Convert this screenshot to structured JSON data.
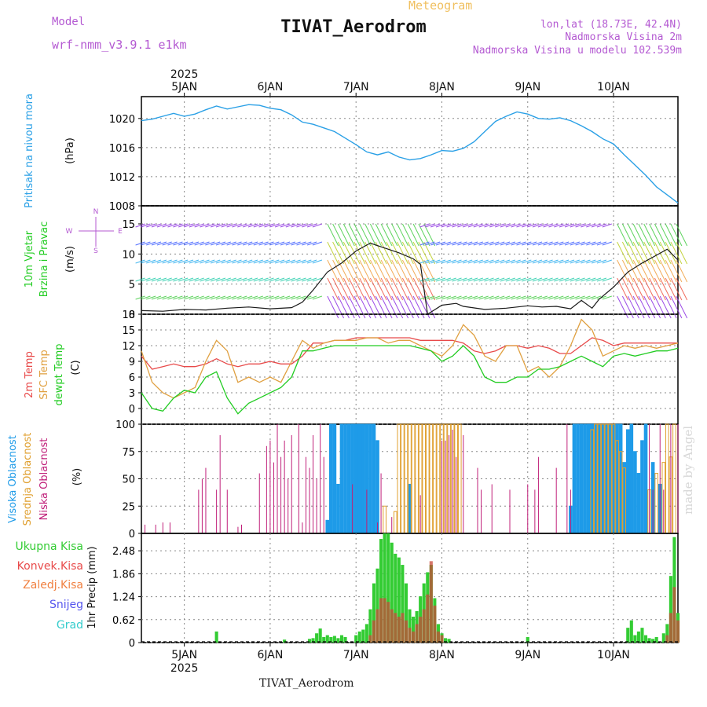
{
  "header": {
    "model_label": "Model",
    "model_value": "wrf-nmm_v3.9.1 e1km",
    "title": "TIVAT_Aerodrom",
    "subtitle": "Meteogram",
    "coords": "lon,lat (18.73E, 42.4N)",
    "elevation": "Nadmorska Visina 2m",
    "model_elevation": "Nadmorska Visina u modelu 102.539m"
  },
  "footer": {
    "station": "TIVAT_Aerodrom"
  },
  "credit": "made by Angel",
  "colors": {
    "pressure": "#2aa0e6",
    "rh": "#1a1a1a",
    "temp2m": "#e84a4a",
    "sfc": "#e0a040",
    "dewpt": "#22cc22",
    "cloud_high": "#1e9be8",
    "cloud_mid": "#e0a030",
    "cloud_low": "#c0207a",
    "precip_total": "#33cc33",
    "precip_conv": "#c84a3a",
    "label_magenta": "#b45ad2",
    "grid": "#888888"
  },
  "chart_data": [
    {
      "type": "line",
      "panel": "pressure",
      "ylabel_lines": [
        "Pritisak na nivou mora",
        "(hPa)"
      ],
      "ylim": [
        1008,
        1023
      ],
      "yticks": [
        1008,
        1012,
        1016,
        1020
      ],
      "xticks_top": [
        "5JAN",
        "6JAN",
        "7JAN",
        "8JAN",
        "9JAN",
        "10JAN"
      ],
      "year_top": "2025",
      "x_unit": "hours from 2025-01-04 12:00 UTC",
      "x": [
        0,
        3,
        6,
        9,
        12,
        15,
        18,
        21,
        24,
        27,
        30,
        33,
        36,
        39,
        42,
        45,
        48,
        51,
        54,
        57,
        60,
        63,
        66,
        69,
        72,
        75,
        78,
        81,
        84,
        87,
        90,
        93,
        96,
        99,
        102,
        105,
        108,
        111,
        114,
        117,
        120,
        123,
        126,
        129,
        132,
        135,
        138,
        141,
        144,
        147,
        150
      ],
      "y": [
        1019.7,
        1019.9,
        1020.3,
        1020.7,
        1020.3,
        1020.6,
        1021.2,
        1021.7,
        1021.3,
        1021.6,
        1021.9,
        1021.8,
        1021.4,
        1021.2,
        1020.5,
        1019.5,
        1019.2,
        1018.7,
        1018.2,
        1017.3,
        1016.4,
        1015.4,
        1015.0,
        1015.4,
        1014.7,
        1014.3,
        1014.5,
        1015.0,
        1015.6,
        1015.5,
        1015.9,
        1016.8,
        1018.2,
        1019.6,
        1020.3,
        1020.9,
        1020.6,
        1020.0,
        1019.9,
        1020.1,
        1019.7,
        1019.0,
        1018.2,
        1017.2,
        1016.5,
        1015.0,
        1013.6,
        1012.2,
        1010.6,
        1009.5,
        1008.4
      ]
    },
    {
      "type": "line",
      "panel": "wind",
      "ylabel_lines": [
        "10m Vjetar",
        "Brzina i Pravac",
        "(m/s)"
      ],
      "compass": [
        "N",
        "W",
        "E",
        "S"
      ],
      "ylim": [
        0,
        18
      ],
      "yticks": [
        0,
        5,
        10,
        15
      ],
      "series": [
        {
          "name": "wind speed",
          "x": [
            0,
            6,
            12,
            18,
            24,
            30,
            36,
            42,
            45,
            48,
            52,
            56,
            60,
            64,
            68,
            72,
            76,
            78,
            80,
            84,
            88,
            90,
            96,
            102,
            108,
            112,
            116,
            120,
            123,
            126,
            128,
            132,
            136,
            140,
            144,
            147,
            150
          ],
          "y": [
            0.6,
            0.5,
            0.8,
            0.7,
            1.0,
            1.2,
            0.9,
            1.1,
            2.0,
            4.0,
            7.0,
            8.5,
            10.5,
            11.8,
            11.0,
            10.2,
            9.2,
            8.3,
            0.0,
            1.5,
            1.8,
            1.3,
            0.8,
            1.0,
            1.4,
            1.2,
            1.3,
            0.9,
            2.3,
            1.0,
            2.5,
            4.5,
            7.0,
            8.5,
            9.8,
            10.8,
            9.0
          ]
        }
      ]
    },
    {
      "type": "line",
      "panel": "temperature",
      "ylabel_lines": [
        "2m Temp",
        "SFC Temp",
        "dewpt Temp",
        "(C)"
      ],
      "ylim": [
        -3,
        18
      ],
      "yticks": [
        0,
        3,
        6,
        9,
        12,
        15,
        18
      ],
      "series": [
        {
          "name": "2m Temp",
          "x": [
            0,
            3,
            6,
            9,
            12,
            15,
            18,
            21,
            24,
            27,
            30,
            33,
            36,
            39,
            42,
            45,
            48,
            51,
            54,
            57,
            60,
            63,
            66,
            69,
            72,
            75,
            78,
            81,
            84,
            87,
            90,
            93,
            96,
            99,
            102,
            105,
            108,
            111,
            114,
            117,
            120,
            123,
            126,
            129,
            132,
            135,
            138,
            141,
            144,
            147,
            150
          ],
          "y": [
            10,
            7.5,
            8,
            8.5,
            8,
            8,
            8.5,
            9.5,
            8.5,
            8,
            8.5,
            8.5,
            9,
            8.5,
            8.5,
            10,
            12.5,
            12.5,
            13,
            13,
            13.5,
            13.5,
            13.5,
            13.5,
            13.5,
            13.5,
            13,
            13,
            13,
            13,
            12.5,
            11,
            10.5,
            11,
            12,
            12,
            11.5,
            12,
            11.5,
            10.5,
            10.5,
            12,
            13.5,
            13,
            12,
            12.5,
            12.5,
            12.5,
            12.5,
            12.5,
            12.5
          ]
        },
        {
          "name": "SFC Temp",
          "x": [
            0,
            3,
            6,
            9,
            12,
            15,
            18,
            21,
            24,
            27,
            30,
            33,
            36,
            39,
            42,
            45,
            48,
            51,
            54,
            57,
            60,
            63,
            66,
            69,
            72,
            75,
            78,
            81,
            84,
            87,
            90,
            93,
            96,
            99,
            102,
            105,
            108,
            111,
            114,
            117,
            120,
            123,
            126,
            129,
            132,
            135,
            138,
            141,
            144,
            147,
            150
          ],
          "y": [
            11,
            5,
            3,
            2,
            3,
            4,
            9,
            13,
            11,
            5,
            6,
            5,
            6,
            5,
            9,
            13,
            11.5,
            12.5,
            13,
            13,
            13,
            13.5,
            13.5,
            12.5,
            13,
            13,
            12,
            11,
            10,
            12,
            16,
            14,
            10,
            9,
            12,
            12,
            7,
            8,
            6,
            8,
            12,
            17,
            15,
            10,
            11,
            12,
            11.5,
            12,
            11.5,
            12,
            12.5
          ]
        },
        {
          "name": "dewpt Temp",
          "x": [
            0,
            3,
            6,
            9,
            12,
            15,
            18,
            21,
            24,
            27,
            30,
            33,
            36,
            39,
            42,
            45,
            48,
            51,
            54,
            57,
            60,
            63,
            66,
            69,
            72,
            75,
            78,
            81,
            84,
            87,
            90,
            93,
            96,
            99,
            102,
            105,
            108,
            111,
            114,
            117,
            120,
            123,
            126,
            129,
            132,
            135,
            138,
            141,
            144,
            147,
            150
          ],
          "y": [
            3,
            0,
            -0.5,
            2,
            3.5,
            3,
            6,
            7,
            2,
            -1,
            1,
            2,
            3,
            4,
            6,
            11,
            11,
            11.5,
            12,
            12,
            12,
            12,
            12,
            12,
            12,
            12,
            11.5,
            11,
            9,
            10,
            12,
            10,
            6,
            5,
            5,
            6,
            6,
            7.5,
            7.5,
            8,
            9,
            10,
            9,
            8,
            10,
            10.5,
            10,
            10.5,
            11,
            11,
            11.5
          ]
        }
      ]
    },
    {
      "type": "bar",
      "panel": "cloud",
      "ylabel_lines": [
        "Visoka Oblacnost",
        "Srednja Oblacnost",
        "Niska Oblacnost",
        "(%)"
      ],
      "ylim": [
        0,
        100
      ],
      "yticks": [
        0,
        25,
        50,
        75,
        100
      ],
      "series": [
        {
          "name": "Visoka Oblacnost",
          "x": [
            52,
            53,
            54,
            55,
            56,
            57,
            58,
            59,
            60,
            61,
            62,
            63,
            64,
            65,
            66,
            75,
            120,
            121,
            122,
            123,
            124,
            125,
            126,
            127,
            128,
            129,
            130,
            131,
            132,
            133,
            134,
            135,
            136,
            137,
            138,
            139,
            140,
            141,
            143,
            145
          ],
          "y": [
            12,
            100,
            100,
            45,
            100,
            100,
            100,
            100,
            100,
            100,
            100,
            100,
            100,
            100,
            85,
            45,
            25,
            100,
            100,
            100,
            100,
            100,
            100,
            100,
            100,
            100,
            100,
            100,
            100,
            100,
            100,
            65,
            95,
            100,
            75,
            55,
            85,
            100,
            65,
            45
          ]
        },
        {
          "name": "Srednja Oblacnost",
          "x": [
            68,
            71,
            72,
            73,
            74,
            75,
            76,
            77,
            78,
            79,
            80,
            81,
            82,
            83,
            84,
            85,
            86,
            87,
            88,
            89,
            126,
            127,
            128,
            129,
            130,
            131,
            132,
            133,
            134,
            135,
            142,
            144,
            146,
            147,
            148,
            149
          ],
          "y": [
            25,
            20,
            100,
            100,
            100,
            100,
            100,
            100,
            100,
            100,
            100,
            100,
            100,
            100,
            100,
            100,
            100,
            100,
            100,
            100,
            95,
            100,
            100,
            100,
            100,
            100,
            100,
            85,
            75,
            60,
            40,
            55,
            65,
            100,
            70,
            100
          ]
        },
        {
          "name": "Niska Oblacnost",
          "x": [
            1,
            4,
            6,
            8,
            16,
            17,
            18,
            21,
            22,
            24,
            27,
            28,
            33,
            35,
            36,
            37,
            38,
            39,
            40,
            41,
            42,
            44,
            45,
            46,
            47,
            48,
            49,
            50,
            51,
            59,
            63,
            66,
            67,
            70,
            78,
            84,
            85,
            86,
            87,
            88,
            90,
            94,
            95,
            98,
            103,
            108,
            110,
            111,
            116,
            119,
            120,
            142,
            143,
            145,
            146,
            148,
            150
          ],
          "y": [
            8,
            8,
            10,
            10,
            40,
            50,
            60,
            40,
            90,
            40,
            6,
            8,
            55,
            80,
            85,
            65,
            100,
            70,
            85,
            50,
            90,
            100,
            10,
            70,
            60,
            90,
            50,
            100,
            70,
            45,
            40,
            10,
            55,
            15,
            35,
            85,
            85,
            90,
            95,
            70,
            90,
            60,
            40,
            45,
            40,
            45,
            40,
            70,
            60,
            100,
            40,
            100,
            40,
            100,
            40,
            100,
            100
          ]
        }
      ]
    },
    {
      "type": "bar",
      "panel": "precipitation",
      "ylabel_lines": [
        "1hr Precip (mm)"
      ],
      "legend": [
        "Ukupna Kisa",
        "Konvek.Kisa",
        "Zaledj.Kisa",
        "Snijeg",
        "Grad"
      ],
      "ylim": [
        0,
        2.95
      ],
      "yticks": [
        0,
        0.62,
        1.24,
        1.86,
        2.48
      ],
      "xticks_bottom": [
        "5JAN",
        "6JAN",
        "7JAN",
        "8JAN",
        "9JAN",
        "10JAN"
      ],
      "year_bottom": "2025",
      "series": [
        {
          "name": "Ukupna Kisa",
          "x": [
            21,
            40,
            47,
            48,
            49,
            50,
            51,
            52,
            53,
            54,
            55,
            56,
            57,
            60,
            61,
            62,
            63,
            64,
            65,
            66,
            67,
            68,
            69,
            70,
            71,
            72,
            73,
            74,
            75,
            76,
            77,
            78,
            79,
            80,
            81,
            82,
            83,
            84,
            85,
            86,
            108,
            136,
            137,
            138,
            139,
            140,
            141,
            142,
            143,
            144,
            146,
            147,
            148,
            149,
            150
          ],
          "y": [
            0.3,
            0.08,
            0.1,
            0.12,
            0.25,
            0.38,
            0.15,
            0.2,
            0.15,
            0.18,
            0.12,
            0.2,
            0.15,
            0.2,
            0.3,
            0.35,
            0.5,
            0.9,
            1.6,
            2.0,
            2.8,
            2.95,
            2.95,
            2.7,
            2.4,
            2.3,
            2.1,
            1.6,
            0.9,
            0.7,
            0.85,
            1.25,
            1.6,
            1.9,
            2.1,
            1.2,
            0.5,
            0.25,
            0.12,
            0.1,
            0.15,
            0.4,
            0.6,
            0.2,
            0.3,
            0.4,
            0.2,
            0.12,
            0.1,
            0.15,
            0.25,
            0.5,
            1.8,
            2.85,
            0.8
          ]
        },
        {
          "name": "Konvek.Kisa",
          "x": [
            64,
            65,
            66,
            67,
            68,
            69,
            70,
            71,
            72,
            73,
            74,
            75,
            76,
            77,
            78,
            79,
            80,
            81,
            82,
            83,
            84,
            147,
            148,
            149,
            150
          ],
          "y": [
            0.2,
            0.6,
            0.9,
            1.2,
            1.2,
            1.1,
            0.9,
            0.8,
            0.7,
            0.8,
            0.6,
            0.4,
            0.3,
            0.5,
            0.7,
            0.9,
            1.3,
            2.2,
            1.0,
            0.3,
            0.2,
            0.2,
            0.8,
            1.5,
            0.6
          ]
        }
      ]
    }
  ]
}
